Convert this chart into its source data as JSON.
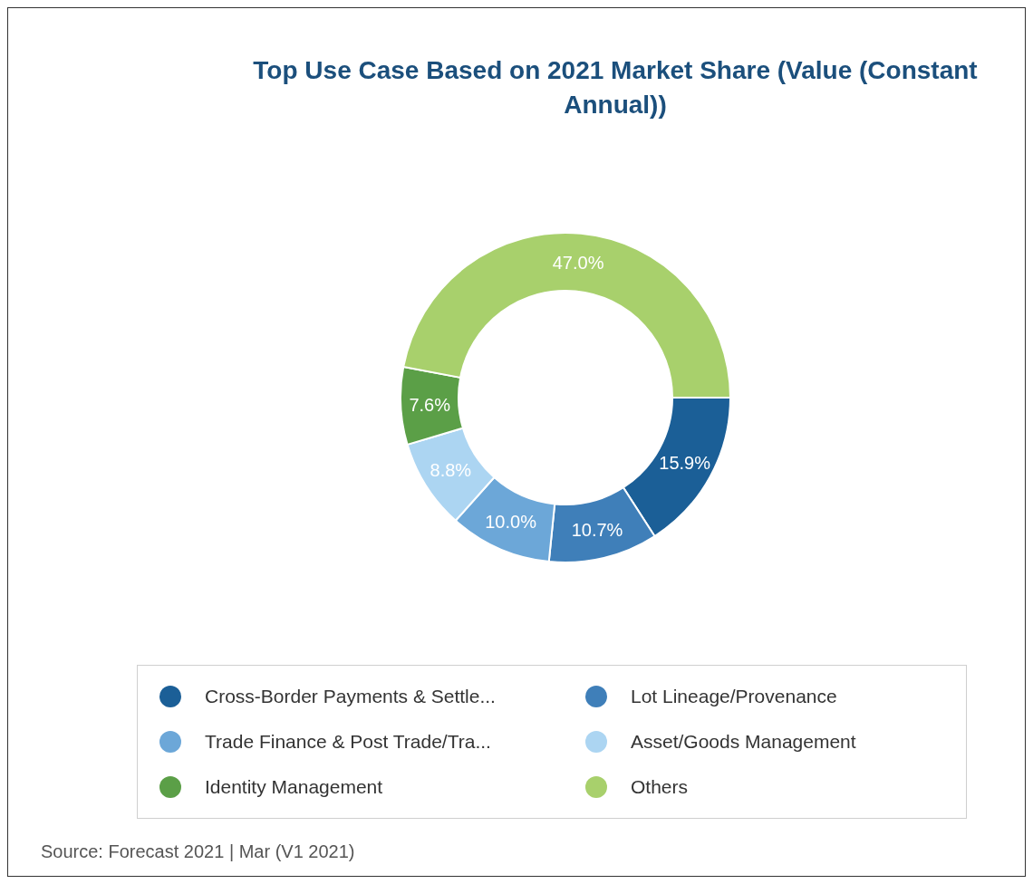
{
  "chart_data": {
    "type": "donut",
    "title": "Top Use Case Based on 2021 Market Share (Value (Constant Annual))",
    "categories": [
      "Cross-Border Payments & Settle...",
      "Lot Lineage/Provenance",
      "Trade Finance & Post Trade/Tra...",
      "Asset/Goods Management",
      "Identity Management",
      "Others"
    ],
    "values": [
      15.9,
      10.7,
      10.0,
      8.8,
      7.6,
      47.0
    ],
    "value_labels": [
      "15.9%",
      "10.7%",
      "10.0%",
      "8.8%",
      "7.6%",
      "47.0%"
    ],
    "colors": [
      "#1b5f97",
      "#3f7fb9",
      "#6ca7d8",
      "#acd5f2",
      "#5b9f47",
      "#a8d06c"
    ],
    "legend": "bottom",
    "annotations": [
      "Source: Forecast 2021 | Mar (V1 2021)"
    ]
  }
}
